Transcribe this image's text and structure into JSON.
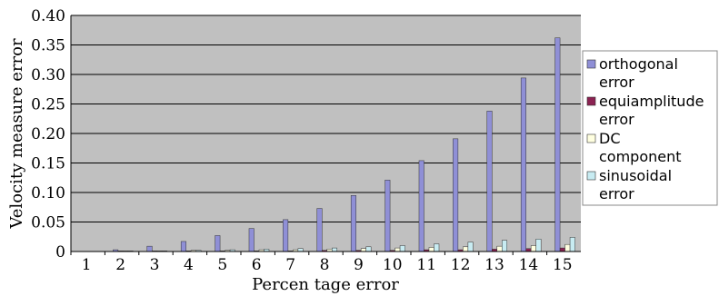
{
  "chart_data": {
    "type": "bar",
    "title": "",
    "xlabel": "Percen tage error",
    "ylabel": "Velocity measure error",
    "categories": [
      "1",
      "2",
      "3",
      "4",
      "5",
      "6",
      "7",
      "8",
      "9",
      "10",
      "11",
      "12",
      "13",
      "14",
      "15"
    ],
    "ylim": [
      0,
      0.4
    ],
    "yticks": [
      "0",
      "0.05",
      "0.10",
      "0.15",
      "0.20",
      "0.25",
      "0.30",
      "0.35",
      "0.40"
    ],
    "grid": true,
    "legend_position": "right",
    "series": [
      {
        "name": "orthogonal error",
        "color": "#8f8fd6",
        "values": [
          0,
          0.003,
          0.009,
          0.017,
          0.027,
          0.039,
          0.054,
          0.073,
          0.095,
          0.121,
          0.154,
          0.191,
          0.238,
          0.294,
          0.362
        ]
      },
      {
        "name": "equiamplitude error",
        "color": "#8b2252",
        "values": [
          0,
          0.001,
          0.001,
          0.001,
          0.001,
          0.001,
          0.001,
          0.002,
          0.002,
          0.002,
          0.003,
          0.003,
          0.004,
          0.005,
          0.006
        ]
      },
      {
        "name": "DC component",
        "color": "#ffffe0",
        "values": [
          0,
          0.001,
          0.001,
          0.002,
          0.002,
          0.003,
          0.003,
          0.004,
          0.005,
          0.006,
          0.007,
          0.008,
          0.009,
          0.01,
          0.012
        ]
      },
      {
        "name": "sinusoidal error",
        "color": "#c8ecf2",
        "values": [
          0,
          0.001,
          0.001,
          0.002,
          0.003,
          0.004,
          0.005,
          0.006,
          0.008,
          0.01,
          0.013,
          0.016,
          0.019,
          0.021,
          0.024
        ]
      }
    ],
    "legend_lines": [
      [
        "orthogonal",
        "error"
      ],
      [
        "equiamplitude",
        "error"
      ],
      [
        "DC",
        "component"
      ],
      [
        "sinusoidal",
        "error"
      ]
    ],
    "colors": {
      "plot_bg": "#c0c0c0",
      "grid": "#000000"
    }
  }
}
